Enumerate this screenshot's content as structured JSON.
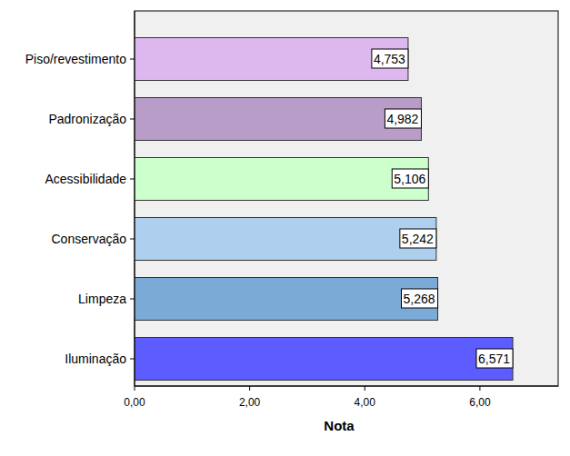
{
  "chart_data": {
    "type": "bar",
    "orientation": "horizontal",
    "categories": [
      "Piso/revestimento",
      "Padronização",
      "Acessibilidade",
      "Conservação",
      "Limpeza",
      "Iluminação"
    ],
    "values": [
      4.753,
      4.982,
      5.106,
      5.242,
      5.268,
      6.571
    ],
    "value_labels": [
      "4,753",
      "4,982",
      "5,106",
      "5,242",
      "5,268",
      "6,571"
    ],
    "colors": [
      "#dcb8ee",
      "#b89dc9",
      "#ccffcc",
      "#aed0ee",
      "#7baad6",
      "#5c5cff"
    ],
    "x_label": "Nota",
    "xlim": [
      0,
      7.36
    ],
    "xticks": [
      {
        "value": 0,
        "label": "0,00"
      },
      {
        "value": 2,
        "label": "2,00"
      },
      {
        "value": 4,
        "label": "4,00"
      },
      {
        "value": 6,
        "label": "6,00"
      }
    ],
    "data_labels": true,
    "grid": false
  }
}
